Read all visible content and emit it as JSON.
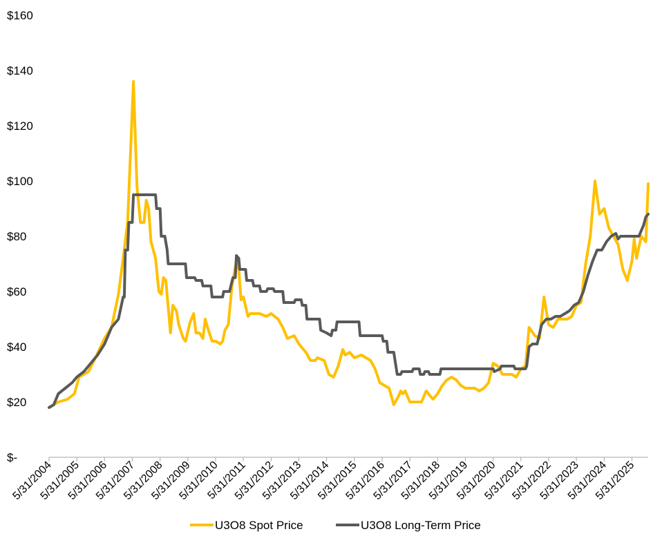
{
  "chart_data": {
    "type": "line",
    "title": "",
    "xlabel": "",
    "ylabel": "",
    "ylim": [
      0,
      160
    ],
    "xlim": [
      "2004-05-31",
      "2025-12-31"
    ],
    "grid": false,
    "legend_position": "bottom",
    "y_ticks": [
      {
        "value": 0,
        "label": "$-"
      },
      {
        "value": 20,
        "label": "$20"
      },
      {
        "value": 40,
        "label": "$40"
      },
      {
        "value": 60,
        "label": "$60"
      },
      {
        "value": 80,
        "label": "$80"
      },
      {
        "value": 100,
        "label": "$100"
      },
      {
        "value": 120,
        "label": "$120"
      },
      {
        "value": 140,
        "label": "$140"
      },
      {
        "value": 160,
        "label": "$160"
      }
    ],
    "x_ticks": [
      {
        "date": "2004-05-31",
        "label": "5/31/2004"
      },
      {
        "date": "2005-05-31",
        "label": "5/31/2005"
      },
      {
        "date": "2006-05-31",
        "label": "5/31/2006"
      },
      {
        "date": "2007-05-31",
        "label": "5/31/2007"
      },
      {
        "date": "2008-05-31",
        "label": "5/31/2008"
      },
      {
        "date": "2009-05-31",
        "label": "5/31/2009"
      },
      {
        "date": "2010-05-31",
        "label": "5/31/2010"
      },
      {
        "date": "2011-05-31",
        "label": "5/31/2011"
      },
      {
        "date": "2012-05-31",
        "label": "5/31/2012"
      },
      {
        "date": "2013-05-31",
        "label": "5/31/2013"
      },
      {
        "date": "2014-05-31",
        "label": "5/31/2014"
      },
      {
        "date": "2015-05-31",
        "label": "5/31/2015"
      },
      {
        "date": "2016-05-31",
        "label": "5/31/2016"
      },
      {
        "date": "2017-05-31",
        "label": "5/31/2017"
      },
      {
        "date": "2018-05-31",
        "label": "5/31/2018"
      },
      {
        "date": "2019-05-31",
        "label": "5/31/2019"
      },
      {
        "date": "2020-05-31",
        "label": "5/31/2020"
      },
      {
        "date": "2021-05-31",
        "label": "5/31/2021"
      },
      {
        "date": "2022-05-31",
        "label": "5/31/2022"
      },
      {
        "date": "2023-05-31",
        "label": "5/31/2023"
      },
      {
        "date": "2024-05-31",
        "label": "5/31/2024"
      },
      {
        "date": "2025-05-31",
        "label": "5/31/2025"
      }
    ],
    "series": [
      {
        "name": "U3O8 Spot Price",
        "color": "#ffc000",
        "points": [
          [
            "2004-05-31",
            18
          ],
          [
            "2004-09-30",
            20
          ],
          [
            "2005-01-31",
            21
          ],
          [
            "2005-04-30",
            23
          ],
          [
            "2005-06-30",
            29
          ],
          [
            "2005-10-31",
            31
          ],
          [
            "2006-01-31",
            36
          ],
          [
            "2006-05-31",
            43
          ],
          [
            "2006-08-31",
            47
          ],
          [
            "2006-11-30",
            59
          ],
          [
            "2007-01-31",
            72
          ],
          [
            "2007-03-31",
            85
          ],
          [
            "2007-06-15",
            136
          ],
          [
            "2007-08-01",
            98
          ],
          [
            "2007-09-15",
            85
          ],
          [
            "2007-11-01",
            85
          ],
          [
            "2007-12-01",
            93
          ],
          [
            "2008-01-01",
            90
          ],
          [
            "2008-02-01",
            78
          ],
          [
            "2008-04-01",
            72
          ],
          [
            "2008-05-15",
            60
          ],
          [
            "2008-06-15",
            59
          ],
          [
            "2008-07-15",
            65
          ],
          [
            "2008-08-15",
            64
          ],
          [
            "2008-10-15",
            45
          ],
          [
            "2008-11-15",
            55
          ],
          [
            "2009-01-01",
            53
          ],
          [
            "2009-02-01",
            48
          ],
          [
            "2009-04-01",
            43
          ],
          [
            "2009-05-01",
            42
          ],
          [
            "2009-07-01",
            49
          ],
          [
            "2009-08-15",
            52
          ],
          [
            "2009-09-15",
            45
          ],
          [
            "2009-11-01",
            45
          ],
          [
            "2009-12-15",
            43
          ],
          [
            "2010-01-15",
            50
          ],
          [
            "2010-02-15",
            47
          ],
          [
            "2010-04-15",
            42
          ],
          [
            "2010-06-01",
            42
          ],
          [
            "2010-08-01",
            41
          ],
          [
            "2010-09-01",
            42
          ],
          [
            "2010-10-01",
            46
          ],
          [
            "2010-11-15",
            48
          ],
          [
            "2011-01-01",
            62
          ],
          [
            "2011-03-01",
            71
          ],
          [
            "2011-04-01",
            68
          ],
          [
            "2011-05-01",
            57
          ],
          [
            "2011-06-01",
            58
          ],
          [
            "2011-08-01",
            51
          ],
          [
            "2011-09-01",
            52
          ],
          [
            "2011-12-31",
            52
          ],
          [
            "2012-03-31",
            51
          ],
          [
            "2012-05-31",
            52
          ],
          [
            "2012-08-31",
            50
          ],
          [
            "2012-10-31",
            47
          ],
          [
            "2012-12-31",
            43
          ],
          [
            "2013-03-31",
            44
          ],
          [
            "2013-05-31",
            41
          ],
          [
            "2013-08-31",
            38
          ],
          [
            "2013-10-31",
            35
          ],
          [
            "2013-12-31",
            35
          ],
          [
            "2014-01-31",
            36
          ],
          [
            "2014-04-30",
            35
          ],
          [
            "2014-06-30",
            30
          ],
          [
            "2014-08-31",
            29
          ],
          [
            "2014-10-31",
            33
          ],
          [
            "2014-12-31",
            39
          ],
          [
            "2015-01-31,",
            37
          ],
          [
            "2015-03-31",
            38
          ],
          [
            "2015-05-31",
            36
          ],
          [
            "2015-08-31",
            37
          ],
          [
            "2015-10-31",
            36
          ],
          [
            "2015-12-31",
            35
          ],
          [
            "2016-02-28",
            32
          ],
          [
            "2016-04-30",
            27
          ],
          [
            "2016-06-30",
            26
          ],
          [
            "2016-08-31",
            25
          ],
          [
            "2016-10-31",
            19
          ],
          [
            "2016-12-31",
            22
          ],
          [
            "2017-01-31",
            24
          ],
          [
            "2017-02-28",
            23
          ],
          [
            "2017-03-31",
            24
          ],
          [
            "2017-05-31",
            20
          ],
          [
            "2017-08-31",
            20
          ],
          [
            "2017-10-31",
            20
          ],
          [
            "2017-12-31",
            24
          ],
          [
            "2018-03-31",
            21
          ],
          [
            "2018-05-31",
            23
          ],
          [
            "2018-07-31",
            26
          ],
          [
            "2018-09-30",
            28
          ],
          [
            "2018-11-30",
            29
          ],
          [
            "2019-01-31",
            28
          ],
          [
            "2019-03-31",
            26
          ],
          [
            "2019-05-31",
            25
          ],
          [
            "2019-07-31",
            25
          ],
          [
            "2019-09-30",
            25
          ],
          [
            "2019-11-30",
            24
          ],
          [
            "2020-01-31",
            25
          ],
          [
            "2020-03-31",
            27
          ],
          [
            "2020-05-31",
            34
          ],
          [
            "2020-07-31",
            33
          ],
          [
            "2020-09-30",
            30
          ],
          [
            "2020-11-30",
            30
          ],
          [
            "2021-01-31",
            30
          ],
          [
            "2021-03-31",
            29
          ],
          [
            "2021-05-31",
            32
          ],
          [
            "2021-07-31",
            33
          ],
          [
            "2021-09-15",
            47
          ],
          [
            "2021-11-30",
            44
          ],
          [
            "2022-01-31",
            43
          ],
          [
            "2022-03-31",
            58
          ],
          [
            "2022-05-31",
            48
          ],
          [
            "2022-07-31",
            47
          ],
          [
            "2022-09-30",
            50
          ],
          [
            "2022-11-30",
            50
          ],
          [
            "2023-01-31",
            50
          ],
          [
            "2023-03-31",
            51
          ],
          [
            "2023-05-31",
            55
          ],
          [
            "2023-07-31",
            56
          ],
          [
            "2023-09-30",
            70
          ],
          [
            "2023-11-30",
            80
          ],
          [
            "2024-01-31",
            100
          ],
          [
            "2024-03-31",
            88
          ],
          [
            "2024-05-31",
            90
          ],
          [
            "2024-07-31",
            83
          ],
          [
            "2024-09-30",
            80
          ],
          [
            "2024-11-30",
            77
          ],
          [
            "2025-01-31",
            68
          ],
          [
            "2025-03-31",
            64
          ],
          [
            "2025-05-31",
            71
          ],
          [
            "2025-06-30",
            79
          ],
          [
            "2025-07-31",
            72
          ],
          [
            "2025-09-30",
            80
          ],
          [
            "2025-11-30",
            78
          ],
          [
            "2025-12-31",
            99
          ]
        ]
      },
      {
        "name": "U3O8 Long-Term Price",
        "color": "#595959",
        "points": [
          [
            "2004-05-31",
            18
          ],
          [
            "2004-07-31",
            19
          ],
          [
            "2004-09-30",
            23
          ],
          [
            "2004-12-31",
            25
          ],
          [
            "2005-03-31",
            27
          ],
          [
            "2005-05-31",
            29
          ],
          [
            "2005-08-31",
            31
          ],
          [
            "2005-11-30",
            34
          ],
          [
            "2006-02-28",
            37
          ],
          [
            "2006-05-31",
            41
          ],
          [
            "2006-08-31",
            47
          ],
          [
            "2006-11-30",
            50
          ],
          [
            "2007-01-31",
            58
          ],
          [
            "2007-02-15",
            58
          ],
          [
            "2007-03-01",
            75
          ],
          [
            "2007-04-01",
            75
          ],
          [
            "2007-04-15",
            85
          ],
          [
            "2007-05-31",
            85
          ],
          [
            "2007-06-15",
            95
          ],
          [
            "2008-04-01",
            95
          ],
          [
            "2008-04-15",
            90
          ],
          [
            "2008-05-31",
            90
          ],
          [
            "2008-06-15",
            80
          ],
          [
            "2008-08-01",
            80
          ],
          [
            "2008-09-01",
            75
          ],
          [
            "2008-09-15",
            70
          ],
          [
            "2009-04-30",
            70
          ],
          [
            "2009-05-15",
            65
          ],
          [
            "2009-08-31",
            65
          ],
          [
            "2009-09-15",
            64
          ],
          [
            "2009-11-30",
            64
          ],
          [
            "2009-12-15",
            62
          ],
          [
            "2010-03-31",
            62
          ],
          [
            "2010-04-15",
            58
          ],
          [
            "2010-08-31",
            58
          ],
          [
            "2010-09-15",
            60
          ],
          [
            "2010-11-30",
            60
          ],
          [
            "2011-01-15",
            65
          ],
          [
            "2011-02-15",
            65
          ],
          [
            "2011-03-01",
            73
          ],
          [
            "2011-04-01",
            72
          ],
          [
            "2011-04-15",
            68
          ],
          [
            "2011-06-30",
            68
          ],
          [
            "2011-07-15",
            64
          ],
          [
            "2011-09-30",
            64
          ],
          [
            "2011-10-15",
            62
          ],
          [
            "2011-12-31",
            62
          ],
          [
            "2012-01-15",
            60
          ],
          [
            "2012-03-31",
            60
          ],
          [
            "2012-04-15",
            61
          ],
          [
            "2012-06-30",
            61
          ],
          [
            "2012-07-15",
            60
          ],
          [
            "2012-10-31",
            60
          ],
          [
            "2012-11-15",
            56
          ],
          [
            "2013-03-31",
            56
          ],
          [
            "2013-04-15",
            57
          ],
          [
            "2013-06-30",
            57
          ],
          [
            "2013-07-15",
            55
          ],
          [
            "2013-08-31",
            55
          ],
          [
            "2013-09-15",
            50
          ],
          [
            "2014-02-28",
            50
          ],
          [
            "2014-03-15",
            46
          ],
          [
            "2014-05-31",
            45
          ],
          [
            "2014-07-31",
            44
          ],
          [
            "2014-08-15",
            46
          ],
          [
            "2014-09-30",
            46
          ],
          [
            "2014-10-15",
            49
          ],
          [
            "2015-07-31",
            49
          ],
          [
            "2015-08-15",
            44
          ],
          [
            "2016-05-31",
            44
          ],
          [
            "2016-06-15",
            42
          ],
          [
            "2016-07-31",
            42
          ],
          [
            "2016-08-15",
            38
          ],
          [
            "2016-10-31",
            38
          ],
          [
            "2016-12-15",
            30
          ],
          [
            "2017-01-31",
            30
          ],
          [
            "2017-02-15",
            31
          ],
          [
            "2017-06-30",
            31
          ],
          [
            "2017-07-15",
            32
          ],
          [
            "2017-09-30",
            32
          ],
          [
            "2017-10-15",
            30
          ],
          [
            "2017-11-30",
            30
          ],
          [
            "2017-12-15",
            31
          ],
          [
            "2018-01-31",
            31
          ],
          [
            "2018-02-15",
            30
          ],
          [
            "2018-06-30",
            30
          ],
          [
            "2018-07-15",
            32
          ],
          [
            "2018-09-30",
            32
          ],
          [
            "2018-10-15",
            32
          ],
          [
            "2020-05-31",
            32
          ],
          [
            "2020-06-15",
            31
          ],
          [
            "2020-08-31",
            32
          ],
          [
            "2020-09-15",
            33
          ],
          [
            "2021-02-28",
            33
          ],
          [
            "2021-03-15",
            32
          ],
          [
            "2021-07-31",
            32
          ],
          [
            "2021-08-15",
            33
          ],
          [
            "2021-09-15",
            40
          ],
          [
            "2021-10-31",
            41
          ],
          [
            "2021-12-31",
            41
          ],
          [
            "2022-02-28",
            48
          ],
          [
            "2022-04-30",
            50
          ],
          [
            "2022-06-30",
            50
          ],
          [
            "2022-08-31",
            51
          ],
          [
            "2022-10-31",
            51
          ],
          [
            "2022-12-31",
            52
          ],
          [
            "2023-02-28",
            53
          ],
          [
            "2023-04-30",
            55
          ],
          [
            "2023-06-30",
            56
          ],
          [
            "2023-08-31",
            60
          ],
          [
            "2023-10-31",
            66
          ],
          [
            "2023-12-31",
            71
          ],
          [
            "2024-02-28",
            75
          ],
          [
            "2024-04-30",
            75
          ],
          [
            "2024-06-30",
            78
          ],
          [
            "2024-08-31",
            80
          ],
          [
            "2024-10-31",
            81
          ],
          [
            "2024-11-30",
            79
          ],
          [
            "2024-12-31",
            80
          ],
          [
            "2025-06-30",
            80
          ],
          [
            "2025-08-31",
            80
          ],
          [
            "2025-10-31",
            84
          ],
          [
            "2025-11-30",
            87
          ],
          [
            "2025-12-31",
            88
          ]
        ]
      }
    ]
  }
}
